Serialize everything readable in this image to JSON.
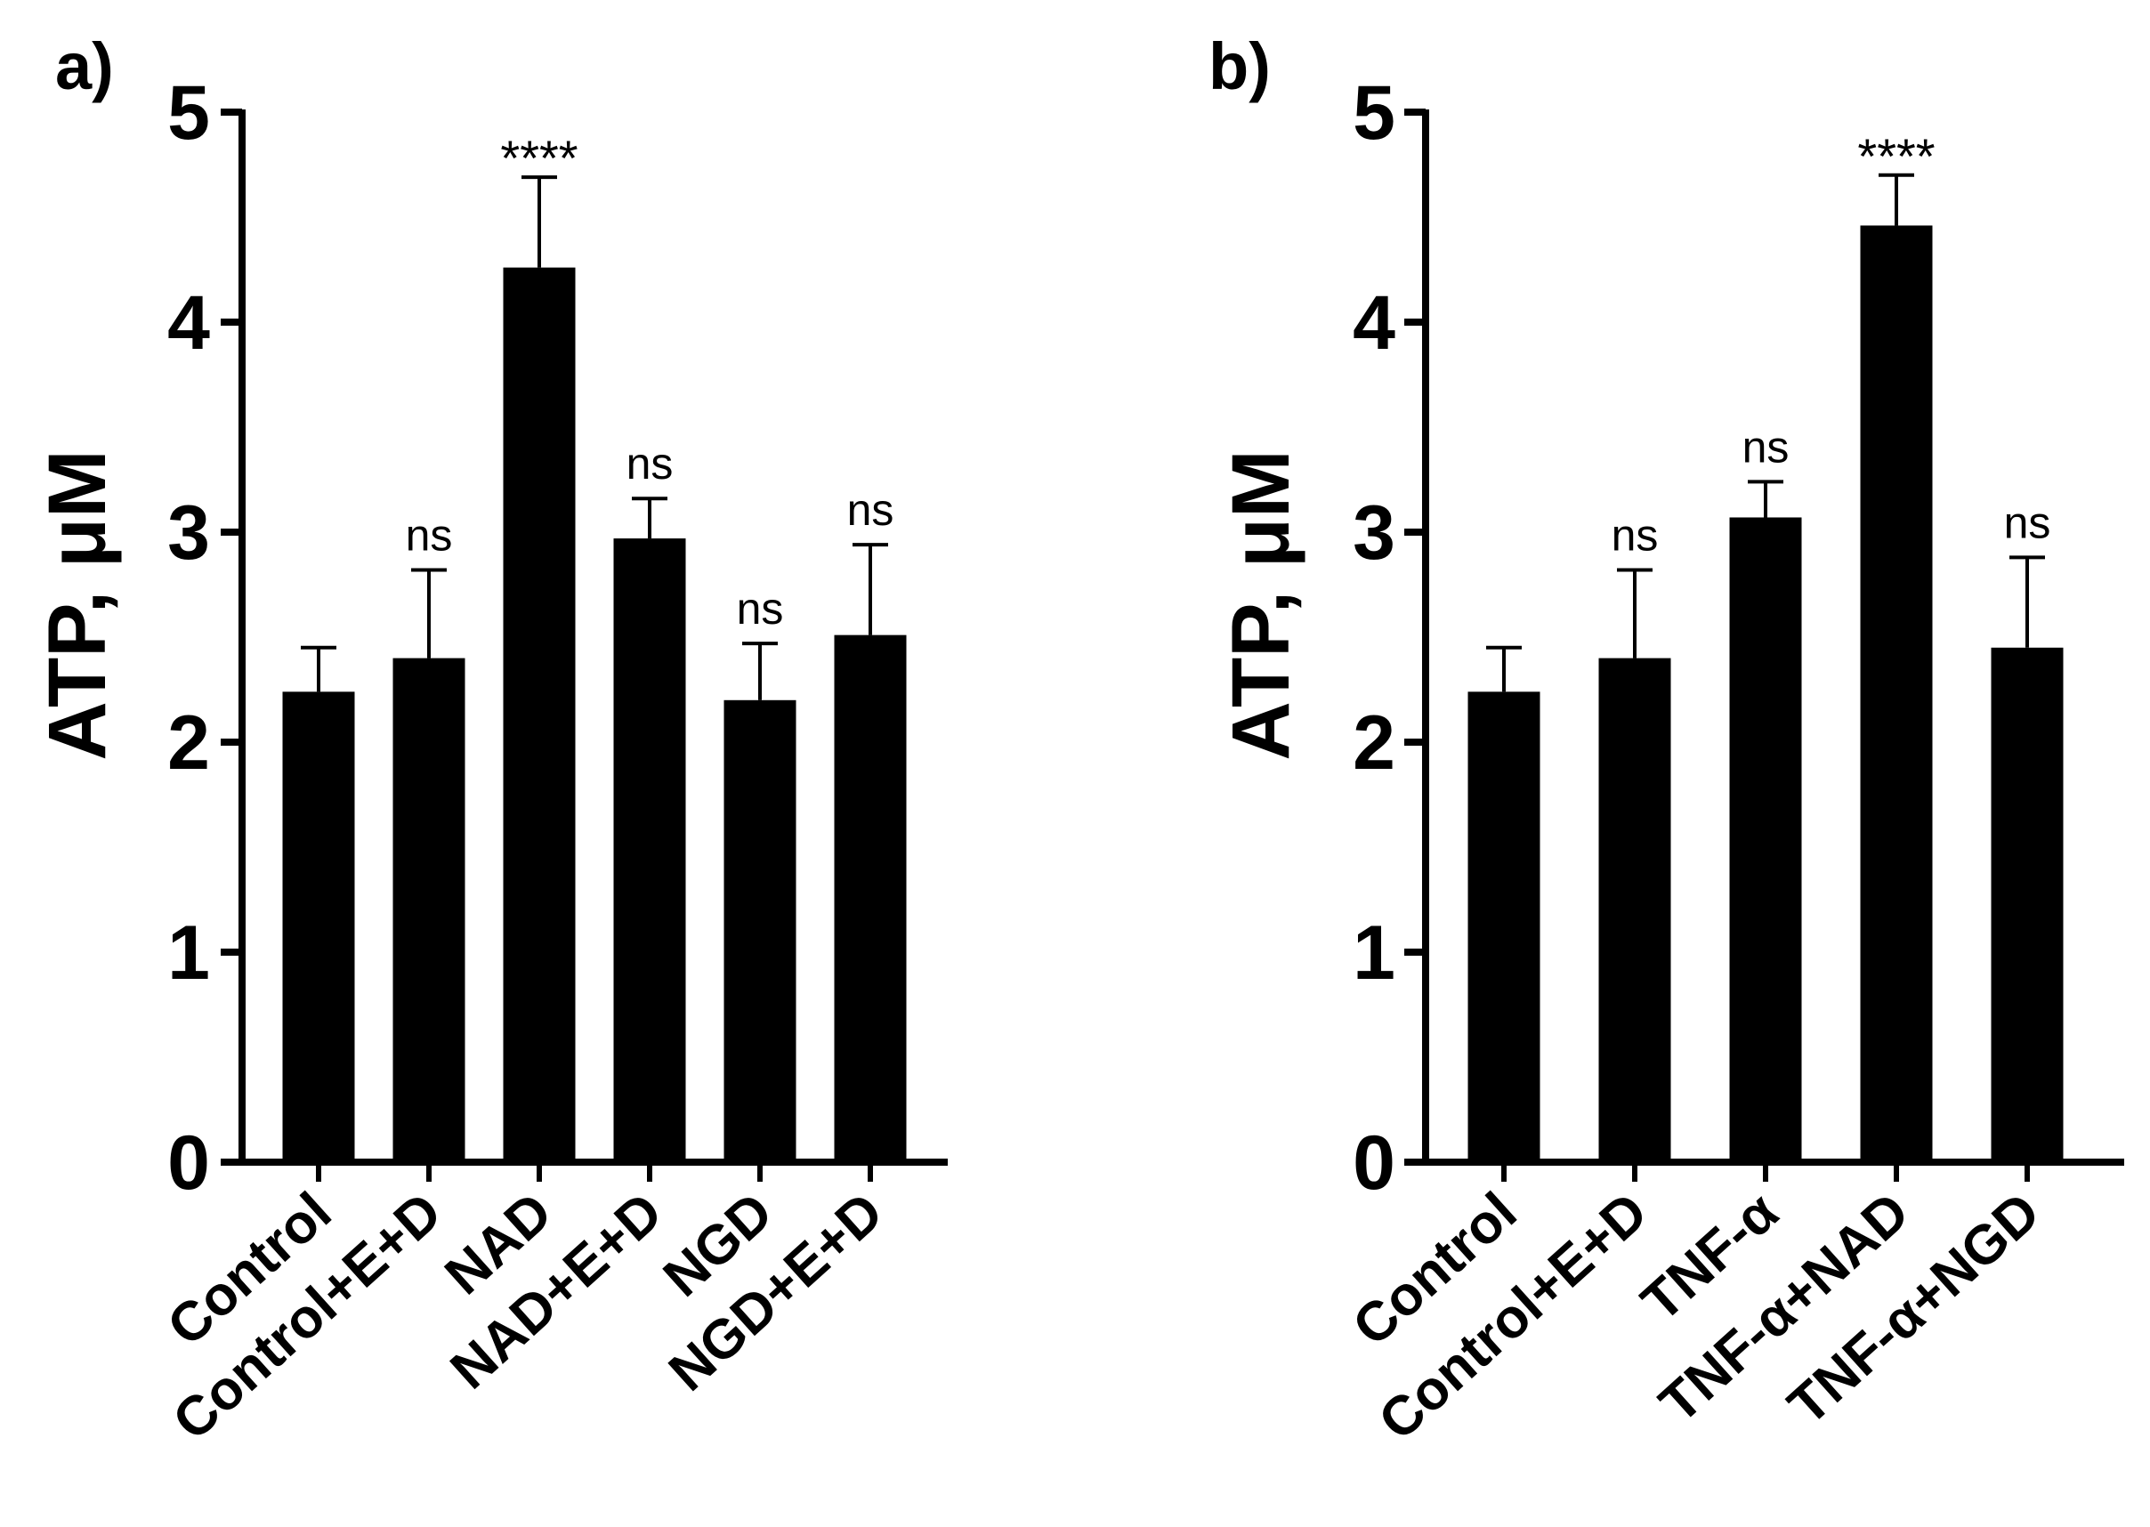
{
  "chart_data": [
    {
      "panel": "a)",
      "type": "bar",
      "ylabel": "ATP, μM",
      "ylim": [
        0,
        5
      ],
      "yticks": [
        "0",
        "1",
        "2",
        "3",
        "4",
        "5"
      ],
      "categories": [
        "Control",
        "Control+E+D",
        "NAD",
        "NAD+E+D",
        "NGD",
        "NGD+E+D"
      ],
      "values": [
        2.24,
        2.4,
        4.26,
        2.97,
        2.2,
        2.51
      ],
      "errors": [
        0.21,
        0.42,
        0.43,
        0.19,
        0.27,
        0.43
      ],
      "significance": [
        "",
        "ns",
        "****",
        "ns",
        "ns",
        "ns"
      ],
      "bar_color": "#000000"
    },
    {
      "panel": "b)",
      "type": "bar",
      "ylabel": "ATP, μM",
      "ylim": [
        0,
        5
      ],
      "yticks": [
        "0",
        "1",
        "2",
        "3",
        "4",
        "5"
      ],
      "categories": [
        "Control",
        "Control+E+D",
        "TNF-α",
        "TNF-α+NAD",
        "TNF-α+NGD"
      ],
      "values": [
        2.24,
        2.4,
        3.07,
        4.46,
        2.45
      ],
      "errors": [
        0.21,
        0.42,
        0.17,
        0.24,
        0.43
      ],
      "significance": [
        "",
        "ns",
        "ns",
        "****",
        "ns"
      ],
      "bar_color": "#000000"
    }
  ]
}
